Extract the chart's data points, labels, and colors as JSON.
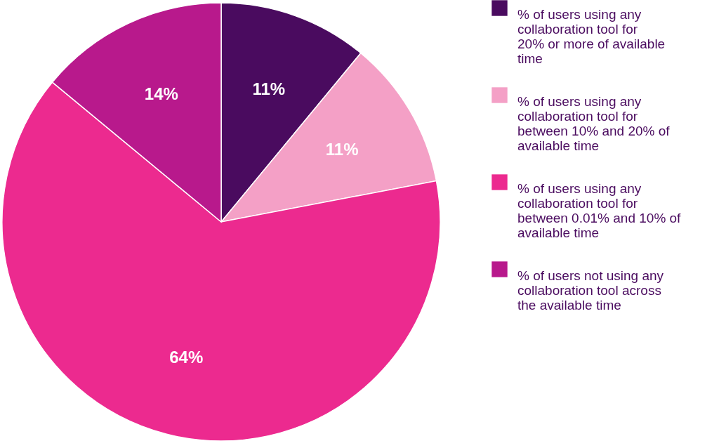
{
  "chart_data": {
    "type": "pie",
    "categories": [
      "% of users using any collaboration tool for 20% or more of available time",
      "% of users using any collaboration tool for between 10% and 20% of available time",
      "% of users using any collaboration tool for between 0.01% and 10% of available time",
      "% of users not using any collaboration tool across the available time"
    ],
    "values": [
      11,
      11,
      64,
      14
    ],
    "value_labels": [
      "11%",
      "11%",
      "64%",
      "14%"
    ],
    "colors": [
      "#4a0b5f",
      "#f4a0c6",
      "#ec2a8f",
      "#b8198c"
    ],
    "legend": "right"
  }
}
